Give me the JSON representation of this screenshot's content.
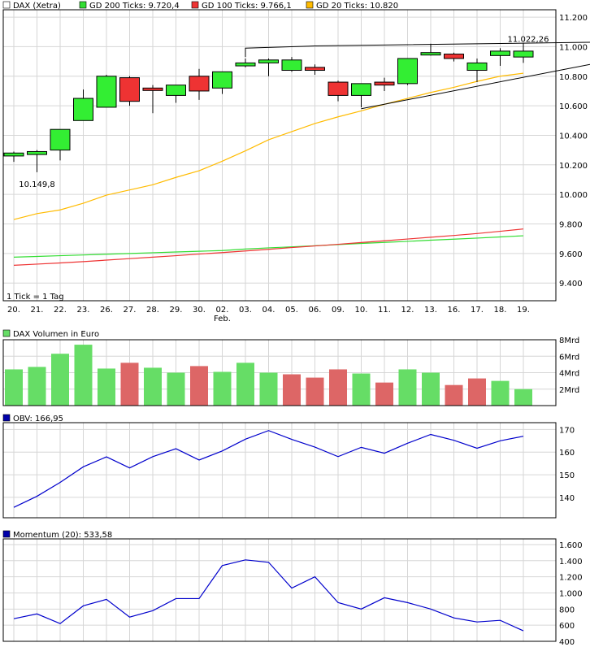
{
  "chart_data": [
    {
      "type": "candlestick",
      "legend": [
        {
          "label": "DAX (Xetra)",
          "color": "#ffffff"
        },
        {
          "label": "GD 200 Ticks: 9.720,4",
          "color": "#33dd33"
        },
        {
          "label": "GD 100 Ticks: 9.766,1",
          "color": "#ee3333"
        },
        {
          "label": "GD 20 Ticks: 10.820",
          "color": "#ffbb00"
        }
      ],
      "categories": [
        "20.",
        "21.",
        "22.",
        "23.",
        "26.",
        "27.",
        "28.",
        "29.",
        "30.",
        "02.",
        "03.",
        "04.",
        "05.",
        "06.",
        "09.",
        "10.",
        "11.",
        "12.",
        "13.",
        "16.",
        "17.",
        "18.",
        "19."
      ],
      "month_label": "Feb.",
      "y_ticks": [
        "9.400",
        "9.600",
        "9.800",
        "10.000",
        "10.200",
        "10.400",
        "10.600",
        "10.800",
        "11.000",
        "11.200"
      ],
      "ylim": [
        9280,
        11250
      ],
      "note": "1 Tick = 1 Tag",
      "annotations": {
        "low": "10.149,8",
        "high": "11.022,26"
      },
      "ohlc": [
        [
          10260,
          10290,
          10220,
          10280
        ],
        [
          10270,
          10300,
          10150,
          10290
        ],
        [
          10300,
          10440,
          10230,
          10440
        ],
        [
          10500,
          10710,
          10500,
          10650
        ],
        [
          10590,
          10810,
          10590,
          10800
        ],
        [
          10790,
          10800,
          10600,
          10630
        ],
        [
          10720,
          10740,
          10550,
          10710
        ],
        [
          10670,
          10740,
          10620,
          10740
        ],
        [
          10800,
          10850,
          10640,
          10700
        ],
        [
          10720,
          10830,
          10680,
          10830
        ],
        [
          10870,
          10920,
          10860,
          10890
        ],
        [
          10890,
          10920,
          10800,
          10910
        ],
        [
          10840,
          10930,
          10830,
          10910
        ],
        [
          10860,
          10880,
          10810,
          10840
        ],
        [
          10760,
          10770,
          10630,
          10670
        ],
        [
          10670,
          10740,
          10590,
          10750
        ],
        [
          10760,
          10790,
          10700,
          10740
        ],
        [
          10750,
          10920,
          10740,
          10920
        ],
        [
          10950,
          11020,
          10940,
          10960
        ],
        [
          10950,
          10960,
          10900,
          10920
        ],
        [
          10840,
          10920,
          10760,
          10890
        ],
        [
          10940,
          10990,
          10870,
          10970
        ],
        [
          10930,
          11022,
          10890,
          10970
        ]
      ],
      "series": [
        {
          "name": "GD 200 Ticks",
          "color": "#33dd33",
          "values": [
            9575,
            9580,
            9585,
            9590,
            9595,
            9600,
            9605,
            9610,
            9615,
            9620,
            9630,
            9638,
            9645,
            9652,
            9660,
            9668,
            9675,
            9682,
            9690,
            9697,
            9704,
            9712,
            9720
          ]
        },
        {
          "name": "GD 100 Ticks",
          "color": "#ee3333",
          "values": [
            9520,
            9528,
            9536,
            9545,
            9555,
            9565,
            9575,
            9585,
            9596,
            9606,
            9617,
            9628,
            9640,
            9651,
            9662,
            9674,
            9686,
            9698,
            9710,
            9722,
            9735,
            9750,
            9766
          ]
        },
        {
          "name": "GD 20 Ticks",
          "color": "#ffbb00",
          "values": [
            9830,
            9870,
            9895,
            9940,
            9995,
            10030,
            10065,
            10115,
            10160,
            10225,
            10295,
            10370,
            10425,
            10480,
            10525,
            10565,
            10610,
            10650,
            10690,
            10725,
            10765,
            10800,
            10820
          ]
        }
      ]
    },
    {
      "type": "bar",
      "legend": [
        {
          "label": "DAX Volumen in Euro",
          "color": "#66dd66"
        }
      ],
      "y_ticks": [
        "2Mrd",
        "4Mrd",
        "6Mrd",
        "8Mrd"
      ],
      "ylim": [
        0,
        8
      ],
      "values": [
        4.4,
        4.7,
        6.3,
        7.4,
        4.5,
        5.2,
        4.6,
        4.0,
        4.8,
        4.1,
        5.2,
        4.0,
        3.8,
        3.4,
        4.4,
        3.9,
        2.8,
        4.4,
        4.0,
        2.5,
        3.3,
        3.0,
        2.0
      ],
      "up": [
        true,
        true,
        true,
        true,
        true,
        false,
        true,
        true,
        false,
        true,
        true,
        true,
        false,
        false,
        false,
        true,
        false,
        true,
        true,
        false,
        false,
        true,
        true
      ],
      "up_color": "#66dd66",
      "down_color": "#dd6666"
    },
    {
      "type": "line",
      "legend": [
        {
          "label": "OBV: 166,95",
          "color": "#0000aa"
        }
      ],
      "y_ticks": [
        "140",
        "150",
        "160",
        "170"
      ],
      "ylim": [
        131,
        173
      ],
      "color": "#0000cc",
      "values": [
        135.6,
        140.5,
        146.6,
        153.5,
        157.9,
        153.0,
        158.0,
        161.5,
        156.5,
        160.5,
        165.7,
        169.5,
        165.6,
        162.2,
        158.0,
        162.1,
        159.5,
        163.9,
        167.8,
        165.2,
        161.7,
        165.0,
        167.0
      ]
    },
    {
      "type": "line",
      "legend": [
        {
          "label": "Momentum (20): 533,58",
          "color": "#0000aa"
        }
      ],
      "y_ticks": [
        "400",
        "600",
        "800",
        "1.000",
        "1.200",
        "1.400",
        "1.600"
      ],
      "ylim": [
        400,
        1670
      ],
      "color": "#0000cc",
      "values": [
        680,
        740,
        620,
        840,
        920,
        700,
        780,
        930,
        930,
        1340,
        1410,
        1380,
        1060,
        1200,
        880,
        800,
        940,
        880,
        800,
        690,
        640,
        660,
        530
      ]
    }
  ]
}
